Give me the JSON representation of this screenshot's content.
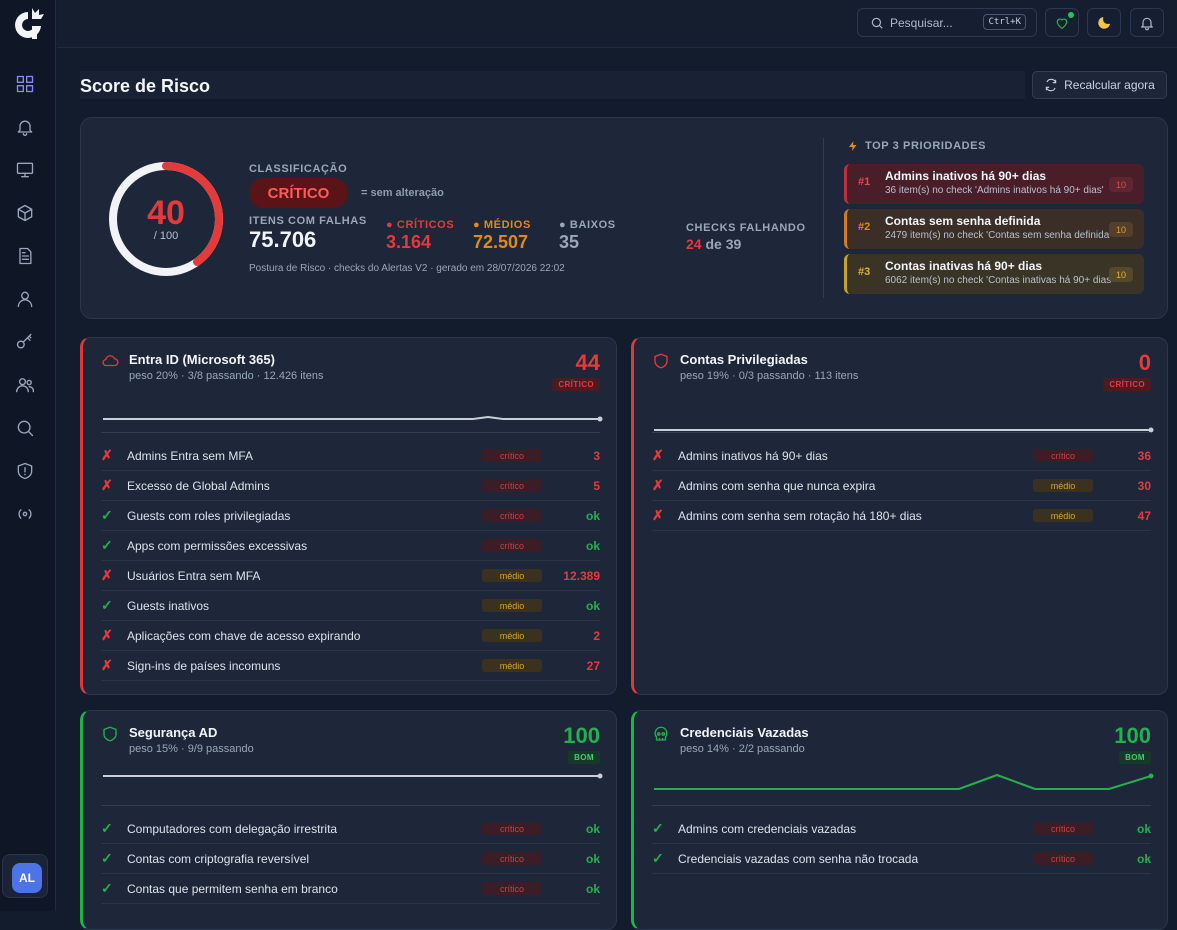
{
  "header": {
    "search_placeholder": "Pesquisar...",
    "search_shortcut": "Ctrl+K"
  },
  "page": {
    "title": "Score de Risco",
    "recalc_label": "Recalcular agora"
  },
  "user": {
    "initials": "AL"
  },
  "summary": {
    "score": "40",
    "score_max": "/ 100",
    "score_fraction": 0.4,
    "classification_label": "CLASSIFICAÇÃO",
    "classification": "CRÍTICO",
    "no_change": "= sem alteração",
    "failing_items_label": "ITENS COM FALHAS",
    "failing_items": "75.706",
    "critical_label": "CRÍTICOS",
    "critical": "3.164",
    "medium_label": "MÉDIOS",
    "medium": "72.507",
    "low_label": "BAIXOS",
    "low": "35",
    "checks_label": "CHECKS FALHANDO",
    "checks_failing": "24",
    "checks_of": "de 39",
    "footer": "Postura de Risco · checks do Alertas V2 · gerado em 28/07/2026 22:02"
  },
  "top3": {
    "title": "TOP 3 PRIORIDADES",
    "items": [
      {
        "rank": "#1",
        "title": "Admins inativos há 90+ dias",
        "desc": "36 item(s) no check 'Admins inativos há 90+ dias'",
        "badge": "10"
      },
      {
        "rank": "#2",
        "title": "Contas sem senha definida",
        "desc": "2479 item(s) no check 'Contas sem senha definida'",
        "badge": "10"
      },
      {
        "rank": "#3",
        "title": "Contas inativas há 90+ dias",
        "desc": "6062 item(s) no check 'Contas inativas há 90+ dias'",
        "badge": "10"
      }
    ]
  },
  "cards": {
    "entra": {
      "title": "Entra ID (Microsoft 365)",
      "sub": "peso 20% · 3/8 passando · 12.426 itens",
      "score": "44",
      "status": "CRÍTICO",
      "rows": [
        {
          "ok": false,
          "label": "Admins Entra sem MFA",
          "sev": "crítico",
          "val": "3"
        },
        {
          "ok": false,
          "label": "Excesso de Global Admins",
          "sev": "crítico",
          "val": "5"
        },
        {
          "ok": true,
          "label": "Guests com roles privilegiadas",
          "sev": "crítico",
          "val": "ok"
        },
        {
          "ok": true,
          "label": "Apps com permissões excessivas",
          "sev": "crítico",
          "val": "ok"
        },
        {
          "ok": false,
          "label": "Usuários Entra sem MFA",
          "sev": "médio",
          "val": "12.389"
        },
        {
          "ok": true,
          "label": "Guests inativos",
          "sev": "médio",
          "val": "ok"
        },
        {
          "ok": false,
          "label": "Aplicações com chave de acesso expirando",
          "sev": "médio",
          "val": "2"
        },
        {
          "ok": false,
          "label": "Sign-ins de países incomuns",
          "sev": "médio",
          "val": "27"
        }
      ]
    },
    "priv": {
      "title": "Contas Privilegiadas",
      "sub": "peso 19% · 0/3 passando · 113 itens",
      "score": "0",
      "status": "CRÍTICO",
      "rows": [
        {
          "ok": false,
          "label": "Admins inativos há 90+ dias",
          "sev": "crítico",
          "val": "36"
        },
        {
          "ok": false,
          "label": "Admins com senha que nunca expira",
          "sev": "médio",
          "val": "30"
        },
        {
          "ok": false,
          "label": "Admins com senha sem rotação há 180+ dias",
          "sev": "médio",
          "val": "47"
        }
      ]
    },
    "ad": {
      "title": "Segurança AD",
      "sub": "peso 15% · 9/9 passando",
      "score": "100",
      "status": "BOM",
      "rows": [
        {
          "ok": true,
          "label": "Computadores com delegação irrestrita",
          "sev": "crítico",
          "val": "ok"
        },
        {
          "ok": true,
          "label": "Contas com criptografia reversível",
          "sev": "crítico",
          "val": "ok"
        },
        {
          "ok": true,
          "label": "Contas que permitem senha em branco",
          "sev": "crítico",
          "val": "ok"
        }
      ]
    },
    "leak": {
      "title": "Credenciais Vazadas",
      "sub": "peso 14% · 2/2 passando",
      "score": "100",
      "status": "BOM",
      "rows": [
        {
          "ok": true,
          "label": "Admins com credenciais vazadas",
          "sev": "crítico",
          "val": "ok"
        },
        {
          "ok": true,
          "label": "Credenciais vazadas com senha não trocada",
          "sev": "crítico",
          "val": "ok"
        }
      ]
    }
  },
  "colors": {
    "critical": "#e53a3a",
    "medium": "#e08a1e",
    "low": "#9aa6bb",
    "good": "#22b14c"
  }
}
